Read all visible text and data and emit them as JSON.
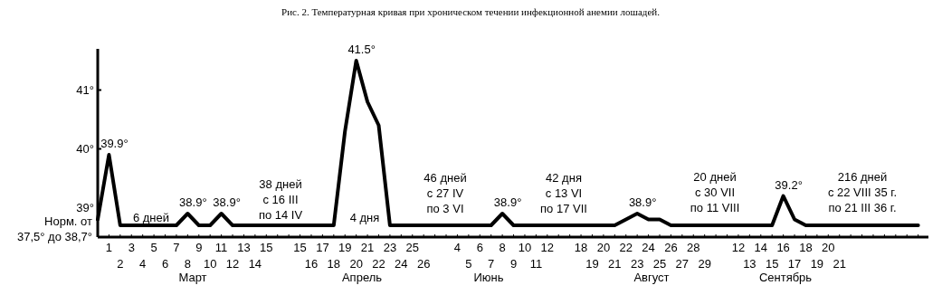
{
  "chart_data": {
    "type": "line",
    "title": "Рис. 2. Температурная кривая при хроническом течении инфекционной анемии лошадей.",
    "color": "#000000",
    "categories": [
      null,
      "1",
      "2",
      "3",
      "4",
      "5",
      "6",
      "7",
      "8",
      "9",
      "10",
      "11",
      "12",
      "13",
      "14",
      "15",
      null,
      null,
      "15",
      "16",
      "17",
      "18",
      "19",
      "20",
      "21",
      "22",
      "23",
      "24",
      "25",
      "26",
      null,
      null,
      "4",
      "5",
      "6",
      "7",
      "8",
      "9",
      "10",
      "11",
      "12",
      null,
      null,
      "18",
      "19",
      "20",
      "21",
      "22",
      "23",
      "24",
      "25",
      "26",
      "27",
      "28",
      "29",
      null,
      null,
      "12",
      "13",
      "14",
      "15",
      "16",
      "17",
      "18",
      "19",
      "20",
      "21",
      null,
      null,
      null,
      null,
      null,
      null,
      null
    ],
    "values": [
      38.8,
      39.9,
      38.7,
      38.7,
      38.7,
      38.7,
      38.7,
      38.7,
      38.9,
      38.7,
      38.7,
      38.9,
      38.7,
      38.7,
      38.7,
      38.7,
      38.7,
      38.7,
      38.7,
      38.7,
      38.7,
      38.7,
      40.3,
      41.5,
      40.8,
      40.4,
      38.7,
      38.7,
      38.7,
      38.7,
      38.7,
      38.7,
      38.7,
      38.7,
      38.7,
      38.7,
      38.9,
      38.7,
      38.7,
      38.7,
      38.7,
      38.7,
      38.7,
      38.7,
      38.7,
      38.7,
      38.7,
      38.8,
      38.9,
      38.8,
      38.8,
      38.7,
      38.7,
      38.7,
      38.7,
      38.7,
      38.7,
      38.7,
      38.7,
      38.7,
      38.7,
      39.2,
      38.8,
      38.7,
      38.7,
      38.7,
      38.7,
      38.7,
      38.7,
      38.7,
      38.7,
      38.7,
      38.7,
      38.7
    ],
    "value_labels": [
      null,
      "39.9°",
      null,
      null,
      null,
      null,
      null,
      null,
      "38.9°",
      null,
      null,
      "38.9°",
      null,
      null,
      null,
      null,
      null,
      null,
      null,
      null,
      null,
      null,
      null,
      "41.5°",
      null,
      null,
      null,
      null,
      null,
      null,
      null,
      null,
      null,
      null,
      null,
      null,
      "38.9°",
      null,
      null,
      null,
      null,
      null,
      null,
      null,
      null,
      null,
      null,
      null,
      "38.9°",
      null,
      null,
      null,
      null,
      null,
      null,
      null,
      null,
      null,
      null,
      null,
      null,
      "39.2°",
      null,
      null,
      null,
      null,
      null,
      null,
      null,
      null,
      null,
      null,
      null,
      null
    ],
    "ylim": [
      38.5,
      41.7
    ],
    "yticks": [
      {
        "value": 39,
        "label": "39°"
      },
      {
        "value": 40,
        "label": "40°"
      },
      {
        "value": 41,
        "label": "41°"
      }
    ],
    "annotations": [
      "Норм. от\n37,5° до 38,7°",
      "6 дней",
      "38 дней\nс 16 III\nпо 14 IV",
      "4 дня",
      "46 дней\nс 27 IV\nпо 3 VI",
      "42 дня\nс 13 VI\nпо 17 VII",
      "20 дней\nс 30 VII\nпо 11 VIII",
      "216 дней\nс 22 VIII 35 г.\nпо 21 III 36 г.",
      "Март",
      "Апрель",
      "Июнь",
      "Август",
      "Сентябрь"
    ]
  }
}
